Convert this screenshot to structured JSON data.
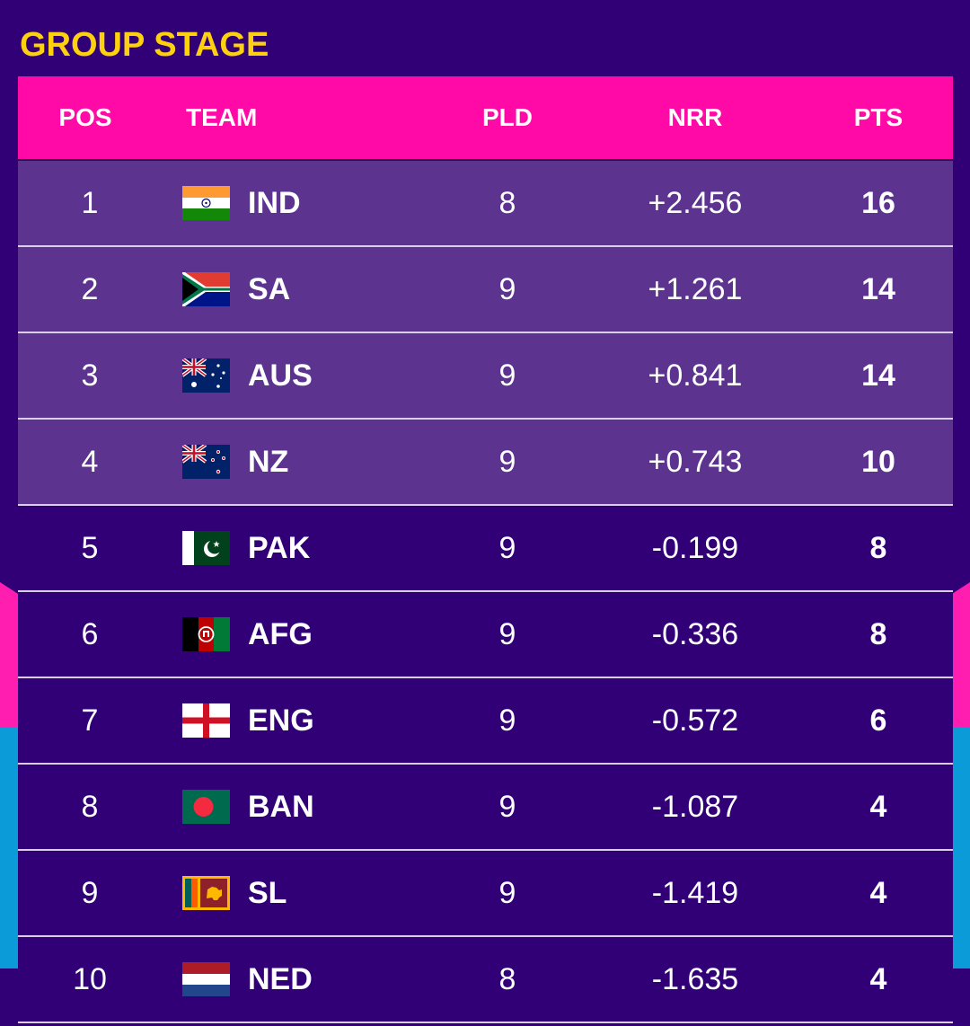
{
  "title": "GROUP STAGE",
  "headers": {
    "pos": "POS",
    "team": "TEAM",
    "pld": "PLD",
    "nrr": "NRR",
    "pts": "PTS"
  },
  "colors": {
    "background": "#320076",
    "header": "#ff0aa6",
    "qualified_row": "#5c338e",
    "title": "#fdd10d"
  },
  "rows": [
    {
      "pos": "1",
      "team": "IND",
      "flag": "india-flag-icon",
      "pld": "8",
      "nrr": "+2.456",
      "pts": "16"
    },
    {
      "pos": "2",
      "team": "SA",
      "flag": "south-africa-flag-icon",
      "pld": "9",
      "nrr": "+1.261",
      "pts": "14"
    },
    {
      "pos": "3",
      "team": "AUS",
      "flag": "australia-flag-icon",
      "pld": "9",
      "nrr": "+0.841",
      "pts": "14"
    },
    {
      "pos": "4",
      "team": "NZ",
      "flag": "new-zealand-flag-icon",
      "pld": "9",
      "nrr": "+0.743",
      "pts": "10"
    },
    {
      "pos": "5",
      "team": "PAK",
      "flag": "pakistan-flag-icon",
      "pld": "9",
      "nrr": "-0.199",
      "pts": "8"
    },
    {
      "pos": "6",
      "team": "AFG",
      "flag": "afghanistan-flag-icon",
      "pld": "9",
      "nrr": "-0.336",
      "pts": "8"
    },
    {
      "pos": "7",
      "team": "ENG",
      "flag": "england-flag-icon",
      "pld": "9",
      "nrr": "-0.572",
      "pts": "6"
    },
    {
      "pos": "8",
      "team": "BAN",
      "flag": "bangladesh-flag-icon",
      "pld": "9",
      "nrr": "-1.087",
      "pts": "4"
    },
    {
      "pos": "9",
      "team": "SL",
      "flag": "sri-lanka-flag-icon",
      "pld": "9",
      "nrr": "-1.419",
      "pts": "4"
    },
    {
      "pos": "10",
      "team": "NED",
      "flag": "netherlands-flag-icon",
      "pld": "8",
      "nrr": "-1.635",
      "pts": "4"
    }
  ]
}
